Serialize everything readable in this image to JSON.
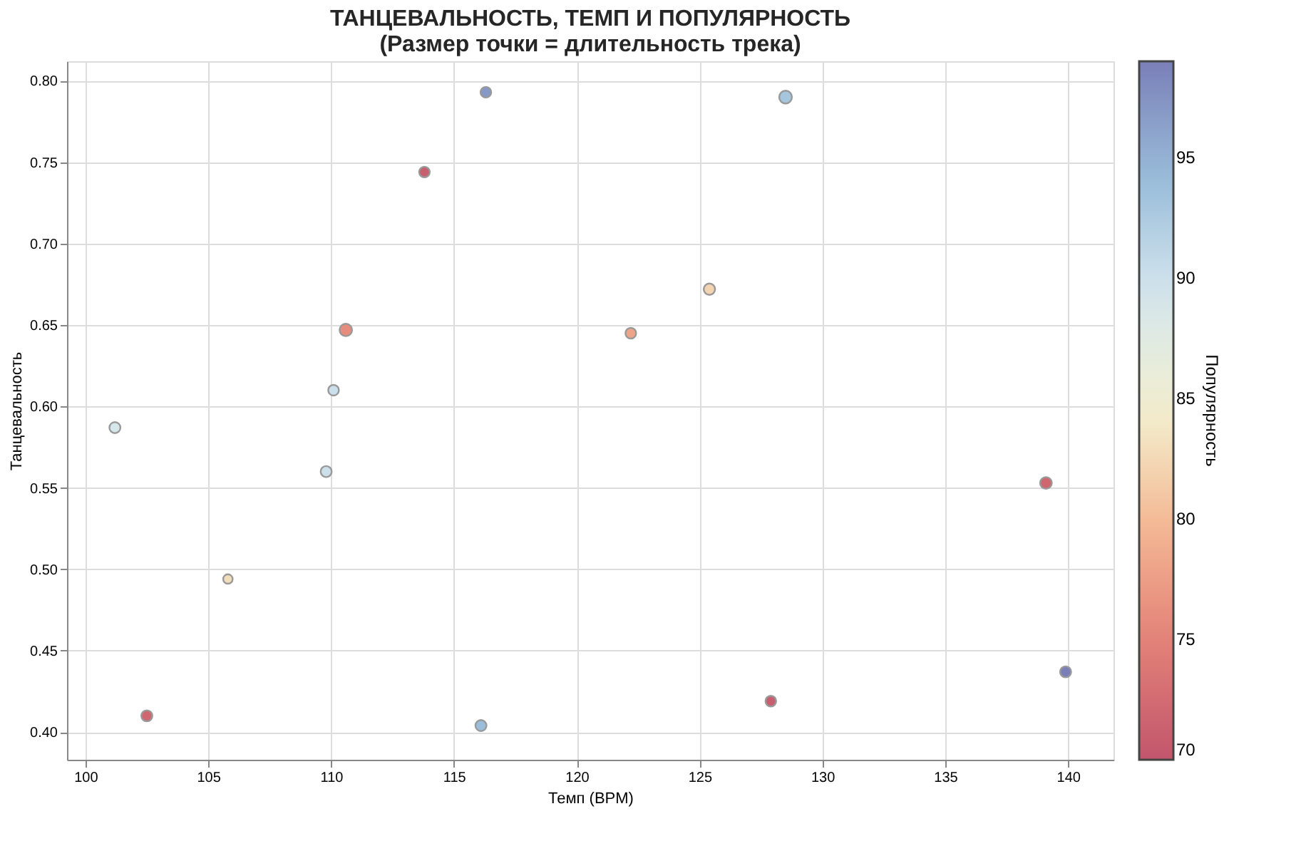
{
  "chart_data": {
    "type": "bubble",
    "title": "ТАНЦЕВАЛЬНОСТЬ, ТЕМП И ПОПУЛЯРНОСТЬ",
    "subtitle": "(Размер точки = длительность трека)",
    "xlabel": "Темп (BPM)",
    "ylabel": "Танцевальность",
    "clabel": "Популярность",
    "x": [
      116.3,
      128.5,
      113.8,
      125.4,
      110.6,
      122.2,
      110.1,
      101.2,
      109.8,
      139.1,
      105.8,
      139.9,
      127.9,
      102.5,
      116.1
    ],
    "values": [
      0.793,
      0.79,
      0.744,
      0.672,
      0.647,
      0.645,
      0.61,
      0.587,
      0.56,
      0.553,
      0.494,
      0.437,
      0.419,
      0.41,
      0.404
    ],
    "cvalues": [
      97,
      93,
      71,
      82,
      76,
      78,
      90,
      89,
      90,
      72,
      83,
      99,
      71,
      72,
      94
    ],
    "sizes": [
      0.7,
      1,
      0.7,
      0.8,
      0.95,
      0.7,
      0.7,
      0.75,
      0.75,
      0.85,
      0.55,
      0.75,
      0.7,
      0.75,
      0.75
    ],
    "xlim": [
      99.25,
      141.85
    ],
    "xticks": [
      100,
      105,
      110,
      115,
      120,
      125,
      130,
      135,
      140
    ],
    "ylim": [
      0.383,
      0.812
    ],
    "yticks": [
      {
        "value": 0.4,
        "label": "0.40"
      },
      0.45,
      {
        "value": 0.5,
        "label": "0.50"
      },
      0.55,
      {
        "value": 0.6,
        "label": "0.60"
      },
      0.65,
      {
        "value": 0.7,
        "label": "0.70"
      },
      0.75,
      {
        "value": 0.8,
        "label": "0.80"
      }
    ],
    "clim": [
      70,
      99
    ],
    "cticks": [
      70,
      75,
      80,
      85,
      90,
      95
    ],
    "grid": true
  }
}
